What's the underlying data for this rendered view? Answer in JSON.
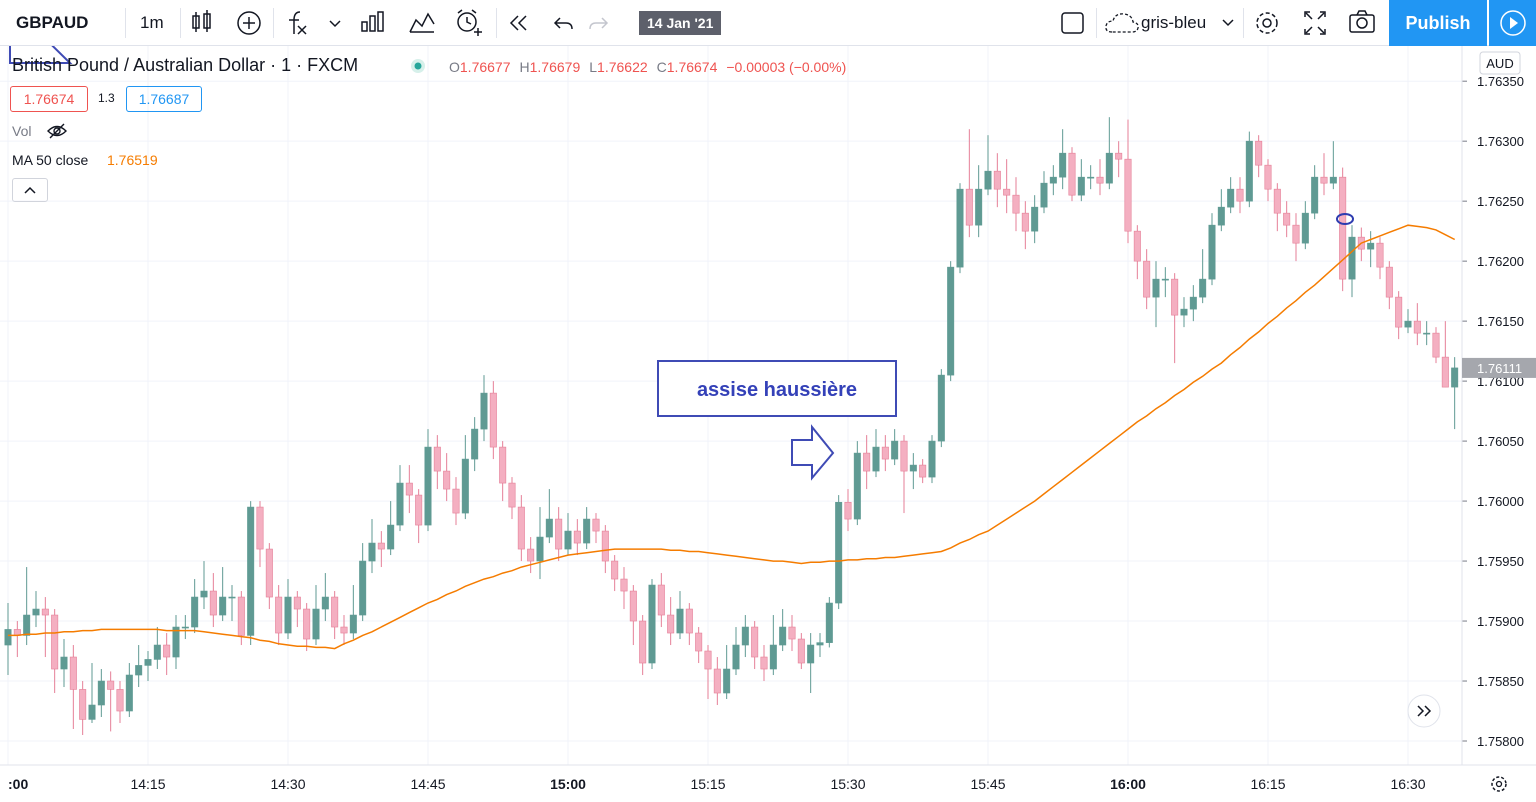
{
  "toolbar": {
    "symbol": "GBPAUD",
    "interval": "1m",
    "date": "14 Jan '21",
    "layout": "gris-bleu",
    "publish": "Publish"
  },
  "legend": {
    "title": "British Pound / Australian Dollar · 1 · FXCM",
    "ohlc": [
      {
        "key": "O",
        "value": "1.76677"
      },
      {
        "key": "H",
        "value": "1.76679"
      },
      {
        "key": "L",
        "value": "1.76622"
      },
      {
        "key": "C",
        "value": "1.76674"
      }
    ],
    "change": "−0.00003 (−0.00%)",
    "bid": "1.76674",
    "spread": "1.3",
    "ask": "1.76687",
    "volume": "Vol",
    "ma_value": "1.76519"
  },
  "chart_data": {
    "type": "candlestick",
    "currency": "AUD",
    "annotation": "assise haussière",
    "up_color": "#5f9a93",
    "down_color": "#f4afc1",
    "grid": true,
    "ylim": [
      1.7578,
      1.76376
    ],
    "yticks": [
      {
        "value": 1.758,
        "label": "1.75800"
      },
      {
        "value": 1.7585,
        "label": "1.75850"
      },
      {
        "value": 1.759,
        "label": "1.75900"
      },
      {
        "value": 1.7595,
        "label": "1.75950"
      },
      {
        "value": 1.76,
        "label": "1.76000"
      },
      {
        "value": 1.7605,
        "label": "1.76050"
      },
      {
        "value": 1.761,
        "label": "1.76100"
      },
      {
        "value": 1.7615,
        "label": "1.76150"
      },
      {
        "value": 1.762,
        "label": "1.76200"
      },
      {
        "value": 1.7625,
        "label": "1.76250"
      },
      {
        "value": 1.763,
        "label": "1.76300"
      },
      {
        "value": 1.7635,
        "label": "1.76350"
      }
    ],
    "last_price": {
      "value": 1.76111,
      "label": "1.76111"
    },
    "categories": [
      ":00",
      null,
      null,
      null,
      null,
      null,
      null,
      null,
      null,
      null,
      null,
      null,
      null,
      null,
      null,
      "14:15",
      null,
      null,
      null,
      null,
      null,
      null,
      null,
      null,
      null,
      null,
      null,
      null,
      null,
      null,
      "14:30",
      null,
      null,
      null,
      null,
      null,
      null,
      null,
      null,
      null,
      null,
      null,
      null,
      null,
      null,
      "14:45",
      null,
      null,
      null,
      null,
      null,
      null,
      null,
      null,
      null,
      null,
      null,
      null,
      null,
      null,
      "15:00",
      null,
      null,
      null,
      null,
      null,
      null,
      null,
      null,
      null,
      null,
      null,
      null,
      null,
      null,
      "15:15",
      null,
      null,
      null,
      null,
      null,
      null,
      null,
      null,
      null,
      null,
      null,
      null,
      null,
      null,
      "15:30",
      null,
      null,
      null,
      null,
      null,
      null,
      null,
      null,
      null,
      null,
      null,
      null,
      null,
      null,
      "15:45",
      null,
      null,
      null,
      null,
      null,
      null,
      null,
      null,
      null,
      null,
      null,
      null,
      null,
      null,
      "16:00",
      null,
      null,
      null,
      null,
      null,
      null,
      null,
      null,
      null,
      null,
      null,
      null,
      null,
      null,
      "16:15",
      null,
      null,
      null,
      null,
      null,
      null,
      null,
      null,
      null,
      null,
      null,
      null,
      null,
      null,
      "16:30",
      null,
      null,
      null,
      null,
      null
    ],
    "open": [
      1.7588,
      1.75893,
      1.75888,
      1.75905,
      1.7591,
      1.75905,
      1.7586,
      1.7587,
      1.75843,
      1.75818,
      1.7583,
      1.7585,
      1.75843,
      1.75825,
      1.75855,
      1.75863,
      1.75868,
      1.7588,
      1.7587,
      1.75895,
      1.75895,
      1.7592,
      1.75925,
      1.75905,
      1.7592,
      1.7592,
      1.75888,
      1.75995,
      1.7596,
      1.7592,
      1.7589,
      1.7592,
      1.7591,
      1.75885,
      1.7591,
      1.7592,
      1.75895,
      1.7589,
      1.75905,
      1.7595,
      1.75965,
      1.7596,
      1.7598,
      1.76015,
      1.76005,
      1.7598,
      1.76045,
      1.76025,
      1.7601,
      1.7599,
      1.76035,
      1.7606,
      1.7609,
      1.76045,
      1.76015,
      1.75995,
      1.7596,
      1.7595,
      1.7597,
      1.75985,
      1.7596,
      1.75975,
      1.75965,
      1.75985,
      1.75975,
      1.7595,
      1.75935,
      1.75925,
      1.759,
      1.75865,
      1.7593,
      1.75905,
      1.7589,
      1.7591,
      1.7589,
      1.75875,
      1.7586,
      1.7584,
      1.7586,
      1.7588,
      1.75895,
      1.7587,
      1.7586,
      1.7588,
      1.75895,
      1.75885,
      1.75865,
      1.7588,
      1.75882,
      1.75915,
      1.75999,
      1.75985,
      1.7604,
      1.76025,
      1.76045,
      1.76035,
      1.7605,
      1.76025,
      1.7603,
      1.7602,
      1.7605,
      1.76105,
      1.76195,
      1.7626,
      1.7623,
      1.7626,
      1.76275,
      1.7626,
      1.76255,
      1.7624,
      1.76225,
      1.76245,
      1.76265,
      1.7627,
      1.7629,
      1.76255,
      1.7627,
      1.7627,
      1.76265,
      1.7629,
      1.76285,
      1.76225,
      1.762,
      1.7617,
      1.76185,
      1.76185,
      1.76155,
      1.7616,
      1.7617,
      1.76185,
      1.7623,
      1.76245,
      1.7626,
      1.7625,
      1.763,
      1.7628,
      1.7626,
      1.7624,
      1.7623,
      1.76215,
      1.7624,
      1.7627,
      1.76265,
      1.7627,
      1.76185,
      1.7622,
      1.7621,
      1.76215,
      1.76195,
      1.7617,
      1.76145,
      1.7615,
      1.7614,
      1.7614,
      1.7612,
      1.76095
    ],
    "high": [
      1.75915,
      1.759,
      1.75945,
      1.75925,
      1.7592,
      1.7591,
      1.75885,
      1.7588,
      1.7585,
      1.75865,
      1.7586,
      1.75858,
      1.7585,
      1.75865,
      1.7588,
      1.75875,
      1.75895,
      1.7589,
      1.75905,
      1.75905,
      1.75935,
      1.7595,
      1.7594,
      1.75945,
      1.7593,
      1.75925,
      1.76,
      1.76,
      1.75965,
      1.7593,
      1.75935,
      1.75925,
      1.75915,
      1.7593,
      1.7594,
      1.75925,
      1.75905,
      1.7593,
      1.75965,
      1.75985,
      1.75975,
      1.76,
      1.7603,
      1.7603,
      1.7601,
      1.7606,
      1.76055,
      1.7604,
      1.7602,
      1.76055,
      1.7607,
      1.76105,
      1.761,
      1.7605,
      1.7602,
      1.76005,
      1.7597,
      1.75995,
      1.7601,
      1.75995,
      1.7599,
      1.75985,
      1.75995,
      1.7599,
      1.7598,
      1.75955,
      1.75945,
      1.7593,
      1.75905,
      1.75935,
      1.7594,
      1.7592,
      1.75925,
      1.75915,
      1.75895,
      1.7588,
      1.7587,
      1.7588,
      1.75895,
      1.75905,
      1.759,
      1.7588,
      1.75905,
      1.7591,
      1.75905,
      1.7589,
      1.7589,
      1.7589,
      1.7592,
      1.76005,
      1.7601,
      1.7605,
      1.76055,
      1.7606,
      1.76055,
      1.7606,
      1.76055,
      1.7604,
      1.76035,
      1.76055,
      1.7611,
      1.762,
      1.76265,
      1.7631,
      1.7628,
      1.76305,
      1.7629,
      1.76285,
      1.7627,
      1.7625,
      1.76255,
      1.76275,
      1.7628,
      1.7631,
      1.76295,
      1.76285,
      1.7628,
      1.76285,
      1.7632,
      1.763,
      1.76318,
      1.7623,
      1.7621,
      1.762,
      1.76195,
      1.7619,
      1.7617,
      1.7618,
      1.7621,
      1.7624,
      1.7626,
      1.7627,
      1.7627,
      1.76308,
      1.76305,
      1.76285,
      1.76265,
      1.7625,
      1.7624,
      1.7625,
      1.7628,
      1.7629,
      1.763,
      1.76278,
      1.7623,
      1.76228,
      1.76225,
      1.7622,
      1.762,
      1.76175,
      1.7616,
      1.76165,
      1.7615,
      1.76145,
      1.7615,
      1.7612
    ],
    "low": [
      1.75855,
      1.7587,
      1.7588,
      1.75895,
      1.7587,
      1.7584,
      1.75845,
      1.7581,
      1.75805,
      1.75815,
      1.7582,
      1.75808,
      1.75815,
      1.7582,
      1.75845,
      1.7585,
      1.7586,
      1.75855,
      1.7586,
      1.75885,
      1.7589,
      1.7591,
      1.75895,
      1.759,
      1.759,
      1.7588,
      1.7588,
      1.75945,
      1.7591,
      1.7588,
      1.75885,
      1.75895,
      1.75875,
      1.7588,
      1.759,
      1.75885,
      1.7588,
      1.75885,
      1.759,
      1.7594,
      1.75945,
      1.75955,
      1.75975,
      1.7599,
      1.75965,
      1.75975,
      1.7601,
      1.76,
      1.7598,
      1.75985,
      1.76025,
      1.7605,
      1.76035,
      1.76,
      1.75985,
      1.7595,
      1.7594,
      1.75935,
      1.75965,
      1.7595,
      1.75955,
      1.75955,
      1.7596,
      1.75965,
      1.7594,
      1.75925,
      1.7591,
      1.7588,
      1.75855,
      1.7586,
      1.75895,
      1.7588,
      1.75885,
      1.7588,
      1.75865,
      1.75835,
      1.7583,
      1.75835,
      1.75855,
      1.7587,
      1.7586,
      1.7585,
      1.75855,
      1.75875,
      1.75875,
      1.7586,
      1.7584,
      1.7587,
      1.75878,
      1.7591,
      1.75975,
      1.7598,
      1.7601,
      1.7602,
      1.76025,
      1.7603,
      1.7599,
      1.7601,
      1.76015,
      1.76015,
      1.76045,
      1.761,
      1.7619,
      1.7622,
      1.7622,
      1.76255,
      1.76245,
      1.7624,
      1.76225,
      1.7621,
      1.76215,
      1.7624,
      1.76255,
      1.7626,
      1.7625,
      1.7625,
      1.7626,
      1.76255,
      1.7626,
      1.7627,
      1.76215,
      1.76185,
      1.7616,
      1.76145,
      1.7617,
      1.76115,
      1.76145,
      1.7615,
      1.76165,
      1.7618,
      1.76225,
      1.7624,
      1.7624,
      1.76245,
      1.7627,
      1.7625,
      1.76225,
      1.7622,
      1.762,
      1.7621,
      1.76235,
      1.76255,
      1.7626,
      1.76175,
      1.7617,
      1.762,
      1.76195,
      1.76185,
      1.7616,
      1.76135,
      1.7614,
      1.7613,
      1.7613,
      1.76115,
      1.76095,
      1.7606
    ],
    "close": [
      1.75893,
      1.75888,
      1.75905,
      1.7591,
      1.75905,
      1.7586,
      1.7587,
      1.75843,
      1.75818,
      1.7583,
      1.7585,
      1.75843,
      1.75825,
      1.75855,
      1.75863,
      1.75868,
      1.7588,
      1.7587,
      1.75895,
      1.75895,
      1.7592,
      1.75925,
      1.75905,
      1.7592,
      1.7592,
      1.75888,
      1.75995,
      1.7596,
      1.7592,
      1.7589,
      1.7592,
      1.7591,
      1.75885,
      1.7591,
      1.7592,
      1.75895,
      1.7589,
      1.75905,
      1.7595,
      1.75965,
      1.7596,
      1.7598,
      1.76015,
      1.76005,
      1.7598,
      1.76045,
      1.76025,
      1.7601,
      1.7599,
      1.76035,
      1.7606,
      1.7609,
      1.76045,
      1.76015,
      1.75995,
      1.7596,
      1.7595,
      1.7597,
      1.75985,
      1.7596,
      1.75975,
      1.75965,
      1.75985,
      1.75975,
      1.7595,
      1.75935,
      1.75925,
      1.759,
      1.75865,
      1.7593,
      1.75905,
      1.7589,
      1.7591,
      1.7589,
      1.75875,
      1.7586,
      1.7584,
      1.7586,
      1.7588,
      1.75895,
      1.7587,
      1.7586,
      1.7588,
      1.75895,
      1.75885,
      1.75865,
      1.7588,
      1.75882,
      1.75915,
      1.75999,
      1.75985,
      1.7604,
      1.76025,
      1.76045,
      1.76035,
      1.7605,
      1.76025,
      1.7603,
      1.7602,
      1.7605,
      1.76105,
      1.76195,
      1.7626,
      1.7623,
      1.7626,
      1.76275,
      1.7626,
      1.76255,
      1.7624,
      1.76225,
      1.76245,
      1.76265,
      1.7627,
      1.7629,
      1.76255,
      1.7627,
      1.7627,
      1.76265,
      1.7629,
      1.76285,
      1.76225,
      1.762,
      1.7617,
      1.76185,
      1.76185,
      1.76155,
      1.7616,
      1.7617,
      1.76185,
      1.7623,
      1.76245,
      1.7626,
      1.7625,
      1.763,
      1.7628,
      1.7626,
      1.7624,
      1.7623,
      1.76215,
      1.7624,
      1.7627,
      1.76265,
      1.7627,
      1.76185,
      1.7622,
      1.7621,
      1.76215,
      1.76195,
      1.7617,
      1.76145,
      1.7615,
      1.7614,
      1.7614,
      1.7612,
      1.76095,
      1.76111
    ],
    "series": [
      {
        "name": "MA 50 close",
        "color": "#f57c00",
        "values": [
          1.75888,
          1.75888,
          1.75889,
          1.75889,
          1.7589,
          1.7589,
          1.75891,
          1.75891,
          1.75892,
          1.75892,
          1.75893,
          1.75893,
          1.75893,
          1.75893,
          1.75893,
          1.75893,
          1.75893,
          1.75892,
          1.75892,
          1.75892,
          1.75892,
          1.75891,
          1.7589,
          1.75889,
          1.75888,
          1.75887,
          1.75886,
          1.75884,
          1.75883,
          1.75881,
          1.7588,
          1.75879,
          1.75879,
          1.75878,
          1.75878,
          1.75877,
          1.75881,
          1.75884,
          1.75888,
          1.75891,
          1.75895,
          1.75899,
          1.75903,
          1.75907,
          1.75911,
          1.75915,
          1.75918,
          1.75922,
          1.75925,
          1.75929,
          1.75932,
          1.75935,
          1.75937,
          1.7594,
          1.75942,
          1.75945,
          1.75947,
          1.75949,
          1.75951,
          1.75953,
          1.75955,
          1.75956,
          1.75957,
          1.75958,
          1.75959,
          1.7596,
          1.7596,
          1.7596,
          1.7596,
          1.7596,
          1.7596,
          1.75959,
          1.75959,
          1.75958,
          1.75958,
          1.75957,
          1.75956,
          1.75955,
          1.75954,
          1.75953,
          1.75952,
          1.75951,
          1.7595,
          1.7595,
          1.75949,
          1.75948,
          1.75949,
          1.75949,
          1.7595,
          1.7595,
          1.75951,
          1.75951,
          1.75952,
          1.75952,
          1.75953,
          1.75953,
          1.75954,
          1.75955,
          1.75956,
          1.75957,
          1.75958,
          1.75961,
          1.75965,
          1.75968,
          1.75972,
          1.75975,
          1.7598,
          1.75985,
          1.7599,
          1.75995,
          1.76,
          1.76006,
          1.76012,
          1.76018,
          1.76024,
          1.7603,
          1.76036,
          1.76042,
          1.76048,
          1.76054,
          1.7606,
          1.76066,
          1.76071,
          1.76077,
          1.76082,
          1.76088,
          1.76093,
          1.76099,
          1.76104,
          1.7611,
          1.76115,
          1.76122,
          1.76128,
          1.76135,
          1.76141,
          1.76148,
          1.76154,
          1.76161,
          1.76167,
          1.76174,
          1.7618,
          1.76187,
          1.76194,
          1.76201,
          1.76208,
          1.76215,
          1.76218,
          1.76221,
          1.76224,
          1.76227,
          1.7623,
          1.76229,
          1.76228,
          1.76226,
          1.76222,
          1.76218
        ]
      }
    ]
  }
}
